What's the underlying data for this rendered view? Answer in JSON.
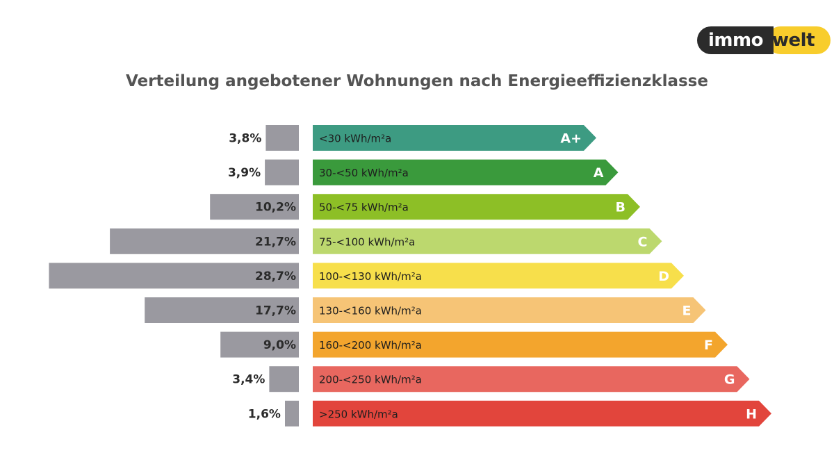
{
  "logo": {
    "part1": "immo",
    "part2": "welt",
    "colors": {
      "dark": "#2b2b2b",
      "yellow": "#f8cd2c"
    }
  },
  "chart_data": {
    "type": "bar",
    "title": "Verteilung angebotener Wohnungen nach Energieeffizienzklasse",
    "unit": "%",
    "bar_color": "#9a99a0",
    "categories": [
      "A+",
      "A",
      "B",
      "C",
      "D",
      "E",
      "F",
      "G",
      "H"
    ],
    "ranges": [
      "<30 kWh/m²a",
      "30-<50 kWh/m²a",
      "50-<75 kWh/m²a",
      "75-<100 kWh/m²a",
      "100-<130 kWh/m²a",
      "130-<160 kWh/m²a",
      "160-<200 kWh/m²a",
      "200-<250 kWh/m²a",
      ">250 kWh/m²a"
    ],
    "values": [
      3.8,
      3.9,
      10.2,
      21.7,
      28.7,
      17.7,
      9.0,
      3.4,
      1.6
    ],
    "value_labels": [
      "3,8%",
      "3,9%",
      "10,2%",
      "21,7%",
      "28,7%",
      "17,7%",
      "9,0%",
      "3,4%",
      "1,6%"
    ],
    "class_colors": [
      "#3d9b82",
      "#3a9a3c",
      "#8dbf26",
      "#bcd86e",
      "#f7df4b",
      "#f6c476",
      "#f3a52d",
      "#e8675f",
      "#e2453c"
    ]
  }
}
